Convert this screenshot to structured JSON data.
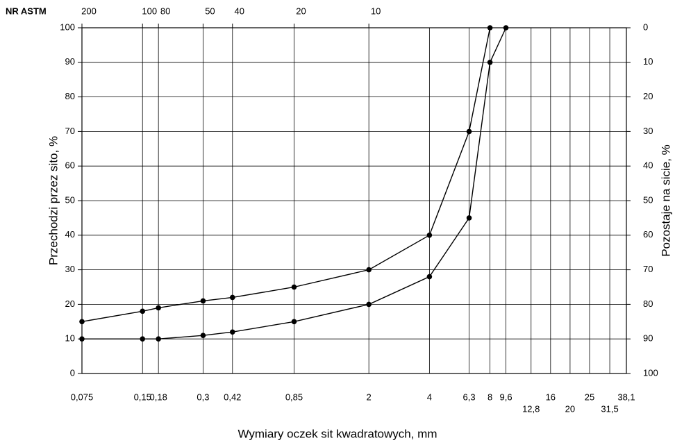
{
  "chart_data": {
    "type": "line",
    "xscale": "log",
    "xlabel": "Wymiary oczek sit kwadratowych, mm",
    "ylabel": "Przechodzi przez sito, %",
    "y2label": "Pozostaje na sicie, %",
    "xlim": [
      0.075,
      38.1
    ],
    "xticks": [
      {
        "value": 0.075,
        "label": "0,075"
      },
      {
        "value": 0.15,
        "label": "0,15"
      },
      {
        "value": 0.18,
        "label": "0,18"
      },
      {
        "value": 0.3,
        "label": "0,3"
      },
      {
        "value": 0.42,
        "label": "0,42"
      },
      {
        "value": 0.85,
        "label": "0,85"
      },
      2,
      4,
      {
        "value": 6.3,
        "label": "6,3"
      },
      8,
      {
        "value": 9.6,
        "label": "9,6"
      },
      {
        "value": 12.8,
        "label": "12,8"
      },
      16,
      20,
      25,
      {
        "value": 31.5,
        "label": "31,5"
      },
      {
        "value": 38.1,
        "label": "38,1"
      }
    ],
    "top_axis": {
      "label": "NR ASTM",
      "ticks": [
        {
          "value": 0.075,
          "label": "200"
        },
        {
          "value": 0.15,
          "label": "100"
        },
        {
          "value": 0.18,
          "label": "80"
        },
        {
          "value": 0.3,
          "label": "50"
        },
        {
          "value": 0.42,
          "label": "40"
        },
        {
          "value": 0.85,
          "label": "20"
        },
        {
          "value": 2,
          "label": "10"
        }
      ]
    },
    "ylim": [
      0,
      100
    ],
    "yticks": [
      0,
      10,
      20,
      30,
      40,
      50,
      60,
      70,
      80,
      90,
      100
    ],
    "y2lim": [
      100,
      0
    ],
    "y2ticks": [
      0,
      10,
      20,
      30,
      40,
      50,
      60,
      70,
      80,
      90,
      100
    ],
    "grid": true,
    "series": [
      {
        "color": "#000000",
        "x": [
          0.075,
          0.15,
          0.18,
          0.3,
          0.42,
          0.85,
          2,
          4,
          6.3,
          8
        ],
        "values": [
          15,
          18,
          19,
          21,
          22,
          25,
          30,
          40,
          70,
          100
        ]
      },
      {
        "color": "#000000",
        "x": [
          0.075,
          0.15,
          0.18,
          0.3,
          0.42,
          0.85,
          2,
          4,
          6.3,
          8,
          9.6
        ],
        "values": [
          10,
          10,
          10,
          11,
          12,
          15,
          20,
          28,
          45,
          90,
          100
        ]
      }
    ]
  }
}
